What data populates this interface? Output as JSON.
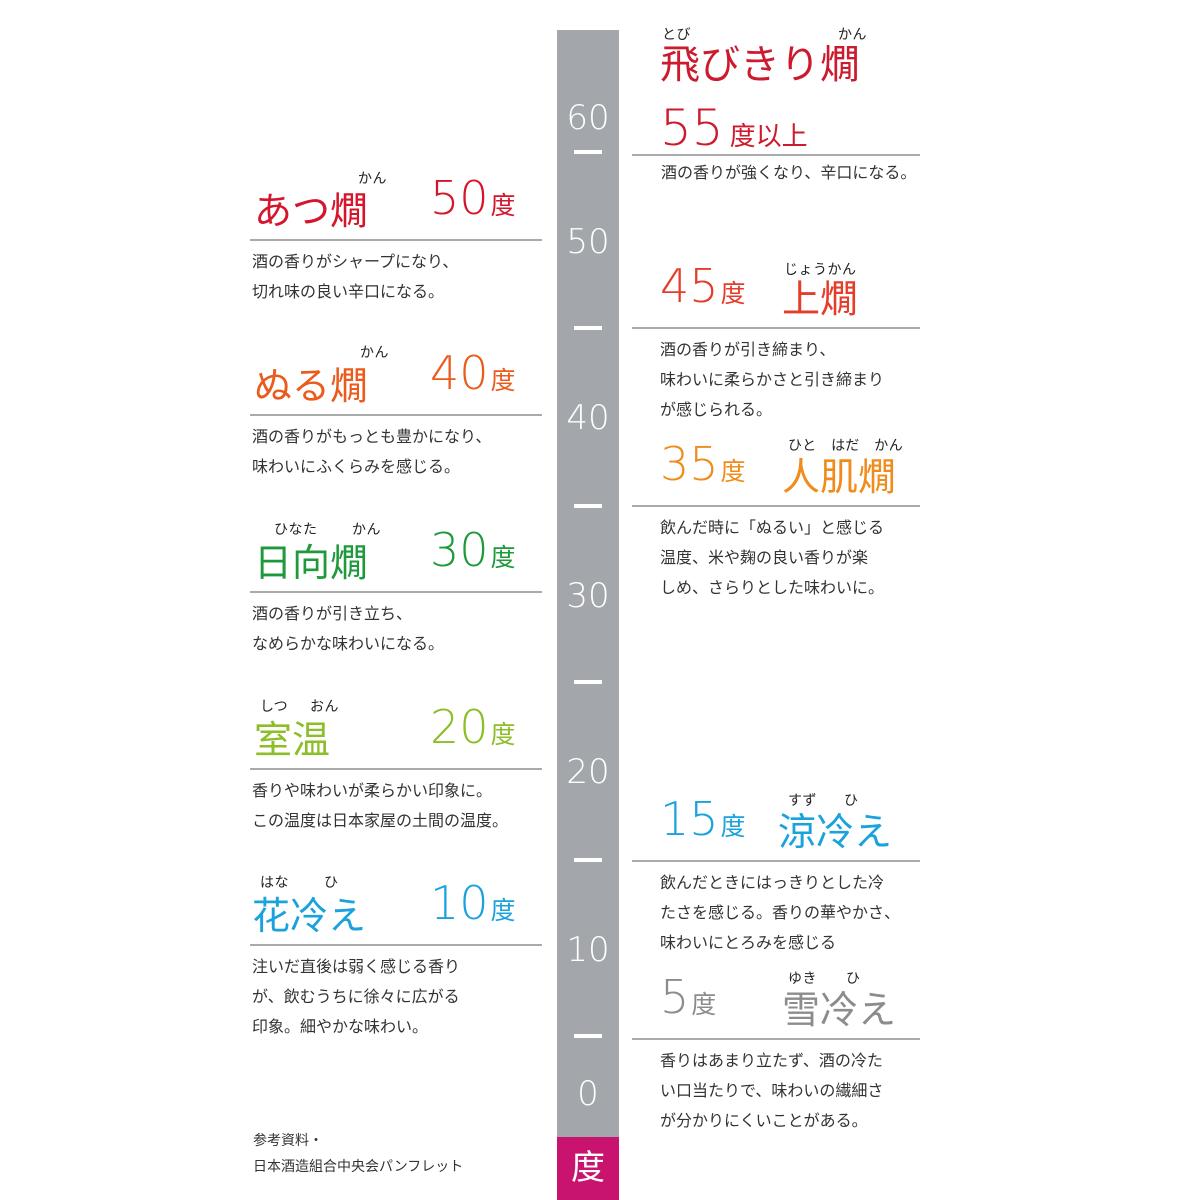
{
  "scale": {
    "ticks": [
      "60",
      "50",
      "40",
      "30",
      "20",
      "10",
      "0"
    ],
    "unit": "度",
    "unit_color": "#c8136f",
    "bar_color": "#a3a7ab"
  },
  "tobikiri": {
    "ruby_1": "とび",
    "ruby_2": "かん",
    "name": "飛びきり燗",
    "temp": "55",
    "temp_suffix": "度以上",
    "desc": "酒の香りが強くなり、辛口になる。",
    "color": "#cc1a2e"
  },
  "atsukan": {
    "ruby": "かん",
    "name": "あつ燗",
    "temp": "50",
    "deg": "度",
    "desc": [
      "酒の香りがシャープになり、",
      "切れ味の良い辛口になる。"
    ],
    "color": "#d5152c"
  },
  "jokan": {
    "ruby": "じょうかん",
    "name": "上燗",
    "temp": "45",
    "deg": "度",
    "desc": [
      "酒の香りが引き締まり、",
      "味わいに柔らかさと引き締まり",
      "が感じられる。"
    ],
    "color": "#e63c2a"
  },
  "nurukan": {
    "ruby": "かん",
    "name": "ぬる燗",
    "temp": "40",
    "deg": "度",
    "desc": [
      "酒の香りがもっとも豊かになり、",
      "味わいにふくらみを感じる。"
    ],
    "color": "#ea5b1c"
  },
  "hitohada": {
    "ruby": "ひと　はだ　かん",
    "name": "人肌燗",
    "temp": "35",
    "deg": "度",
    "desc": [
      "飲んだ時に「ぬるい」と感じる",
      "温度、米や麹の良い香りが楽",
      "しめ、さらりとした味わいに。"
    ],
    "color": "#f08c1c"
  },
  "hinata": {
    "ruby_1": "ひなた",
    "ruby_2": "かん",
    "name": "日向燗",
    "temp": "30",
    "deg": "度",
    "desc": [
      "酒の香りが引き立ち、",
      "なめらかな味わいになる。"
    ],
    "color": "#1e9a3c"
  },
  "shitsuon": {
    "ruby_1": "しつ",
    "ruby_2": "おん",
    "name": "室温",
    "temp": "20",
    "deg": "度",
    "desc": [
      "香りや味わいが柔らかい印象に。",
      "この温度は日本家屋の土間の温度。"
    ],
    "color": "#8cbe28"
  },
  "suzuhie": {
    "ruby_1": "すず",
    "ruby_2": "ひ",
    "name": "涼冷え",
    "temp": "15",
    "deg": "度",
    "desc": [
      "飲んだときにはっきりとした冷",
      "たさを感じる。香りの華やかさ、",
      "味わいにとろみを感じる"
    ],
    "color": "#1aa2dc"
  },
  "hanahie": {
    "ruby_1": "はな",
    "ruby_2": "ひ",
    "name": "花冷え",
    "temp": "10",
    "deg": "度",
    "desc": [
      "注いだ直後は弱く感じる香り",
      "が、飲むうちに徐々に広がる",
      "印象。細やかな味わい。"
    ],
    "color": "#1aa2dc"
  },
  "yukihie": {
    "ruby_1": "ゆき",
    "ruby_2": "ひ",
    "name": "雪冷え",
    "temp": "5",
    "deg": "度",
    "desc": [
      "香りはあまり立たず、酒の冷た",
      "い口当たりで、味わいの繊細さ",
      "が分かりにくいことがある。"
    ],
    "color": "#8c8c8c"
  },
  "source": {
    "line1": "参考資料・",
    "line2": "日本酒造組合中央会パンフレット"
  }
}
